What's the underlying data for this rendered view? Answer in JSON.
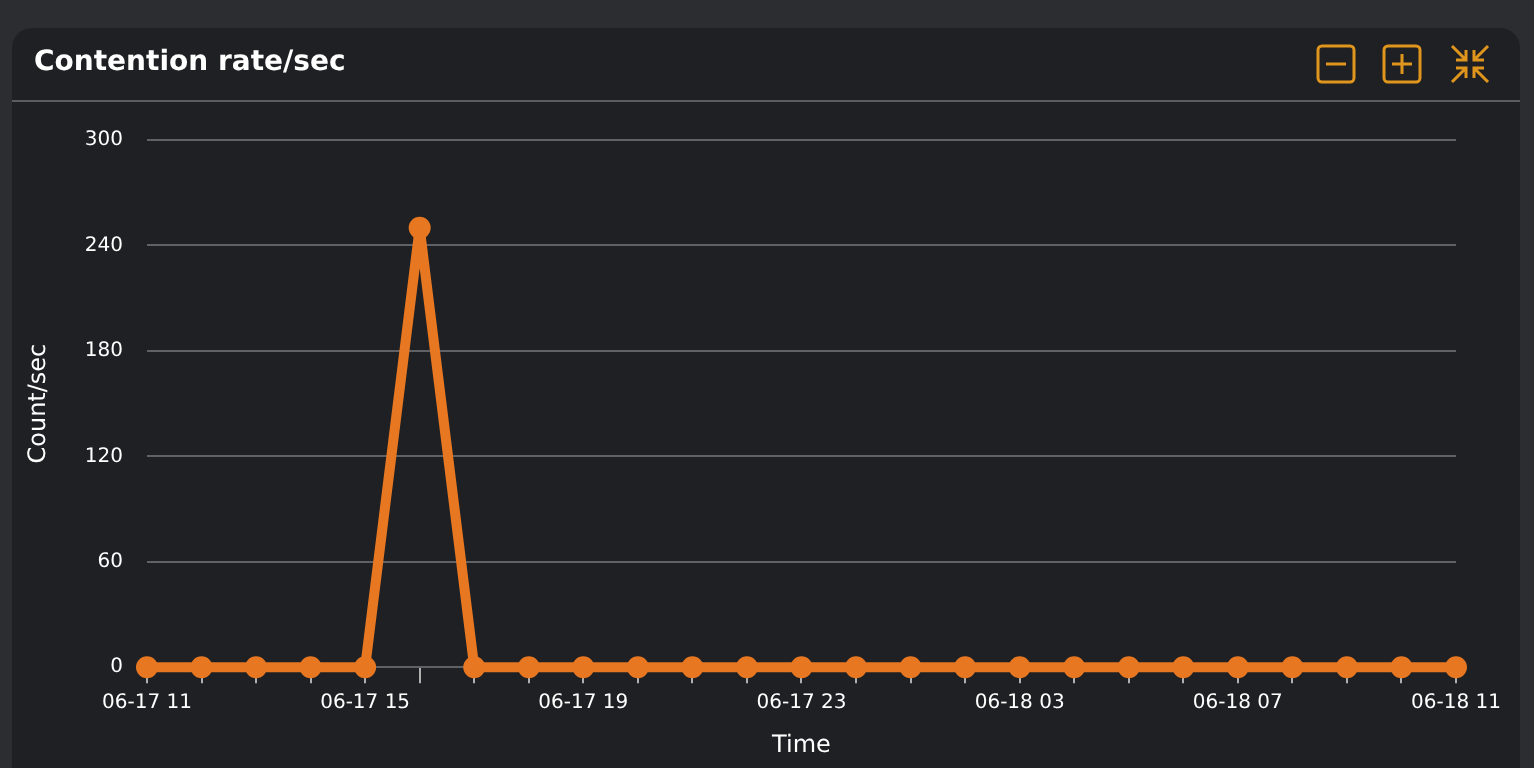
{
  "chart_data": {
    "type": "line",
    "title": "Contention rate/sec",
    "xlabel": "Time",
    "ylabel": "Count/sec",
    "categories": [
      "06-17 11",
      null,
      null,
      null,
      "06-17 15",
      null,
      null,
      null,
      "06-17 19",
      null,
      null,
      null,
      "06-17 23",
      null,
      null,
      null,
      "06-18 03",
      null,
      null,
      null,
      "06-18 07",
      null,
      null,
      null,
      "06-18 11"
    ],
    "series": [
      {
        "color": "#e87722",
        "values": [
          0,
          0,
          0,
          0,
          0,
          250,
          0,
          0,
          0,
          0,
          0,
          0,
          0,
          0,
          0,
          0,
          0,
          0,
          0,
          0,
          0,
          0,
          0,
          0,
          0
        ]
      }
    ],
    "ylim": [
      0,
      300
    ],
    "yticks": [
      0,
      60,
      120,
      180,
      240,
      300
    ],
    "grid": "y",
    "legend": false,
    "marker": "circle",
    "line_style": "solid"
  }
}
